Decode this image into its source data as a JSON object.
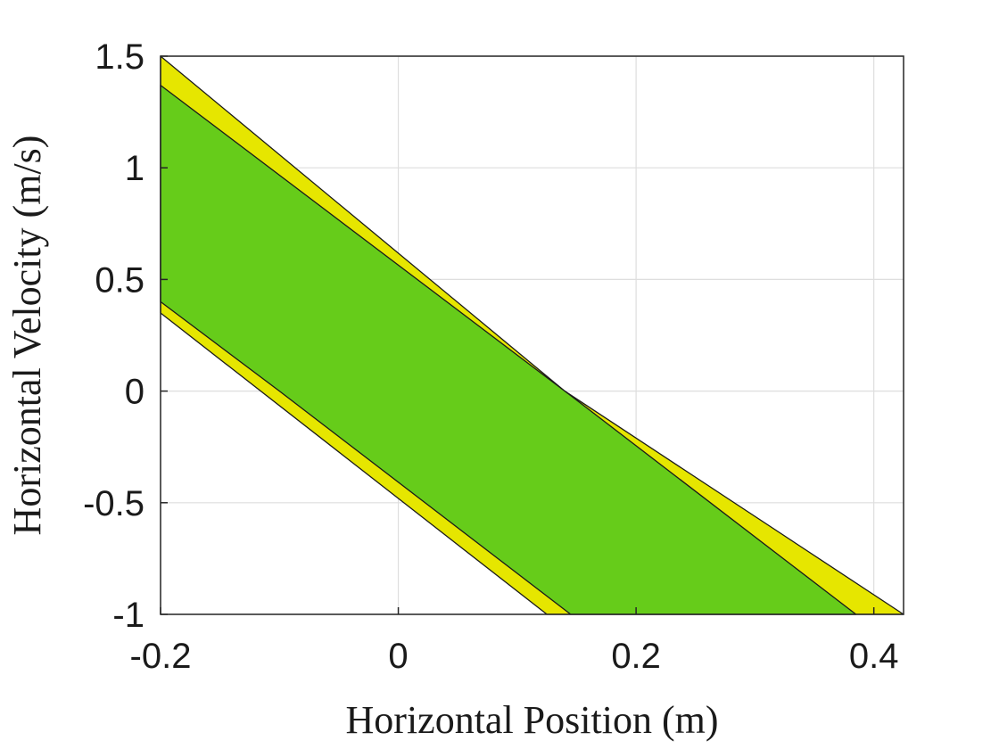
{
  "chart_data": {
    "type": "area",
    "title": "",
    "xlabel": "Horizontal Position (m)",
    "ylabel": "Horizontal Velocity (m/s)",
    "xlim": [
      -0.2,
      0.425
    ],
    "ylim": [
      -1,
      1.5
    ],
    "xticks": [
      -0.2,
      0,
      0.2,
      0.4
    ],
    "xtick_labels": [
      "-0.2",
      "0",
      "0.2",
      "0.4"
    ],
    "yticks": [
      -1,
      -0.5,
      0,
      0.5,
      1,
      1.5
    ],
    "ytick_labels": [
      "-1",
      "-0.5",
      "0",
      "0.5",
      "1",
      "1.5"
    ],
    "grid": true,
    "series": [
      {
        "color": "#e6e600",
        "polygon": [
          [
            -0.2,
            1.5
          ],
          [
            -0.2,
            0.35
          ],
          [
            0.125,
            -1
          ],
          [
            0.425,
            -1
          ],
          [
            0.14,
            0.0
          ],
          [
            -0.2,
            1.5
          ]
        ]
      },
      {
        "color": "#66cc1a",
        "polygon": [
          [
            -0.2,
            1.37
          ],
          [
            0.14,
            0.0
          ],
          [
            0.385,
            -1
          ],
          [
            0.145,
            -1
          ],
          [
            -0.1,
            0.0
          ],
          [
            -0.2,
            0.4
          ],
          [
            -0.2,
            1.37
          ]
        ]
      }
    ]
  }
}
